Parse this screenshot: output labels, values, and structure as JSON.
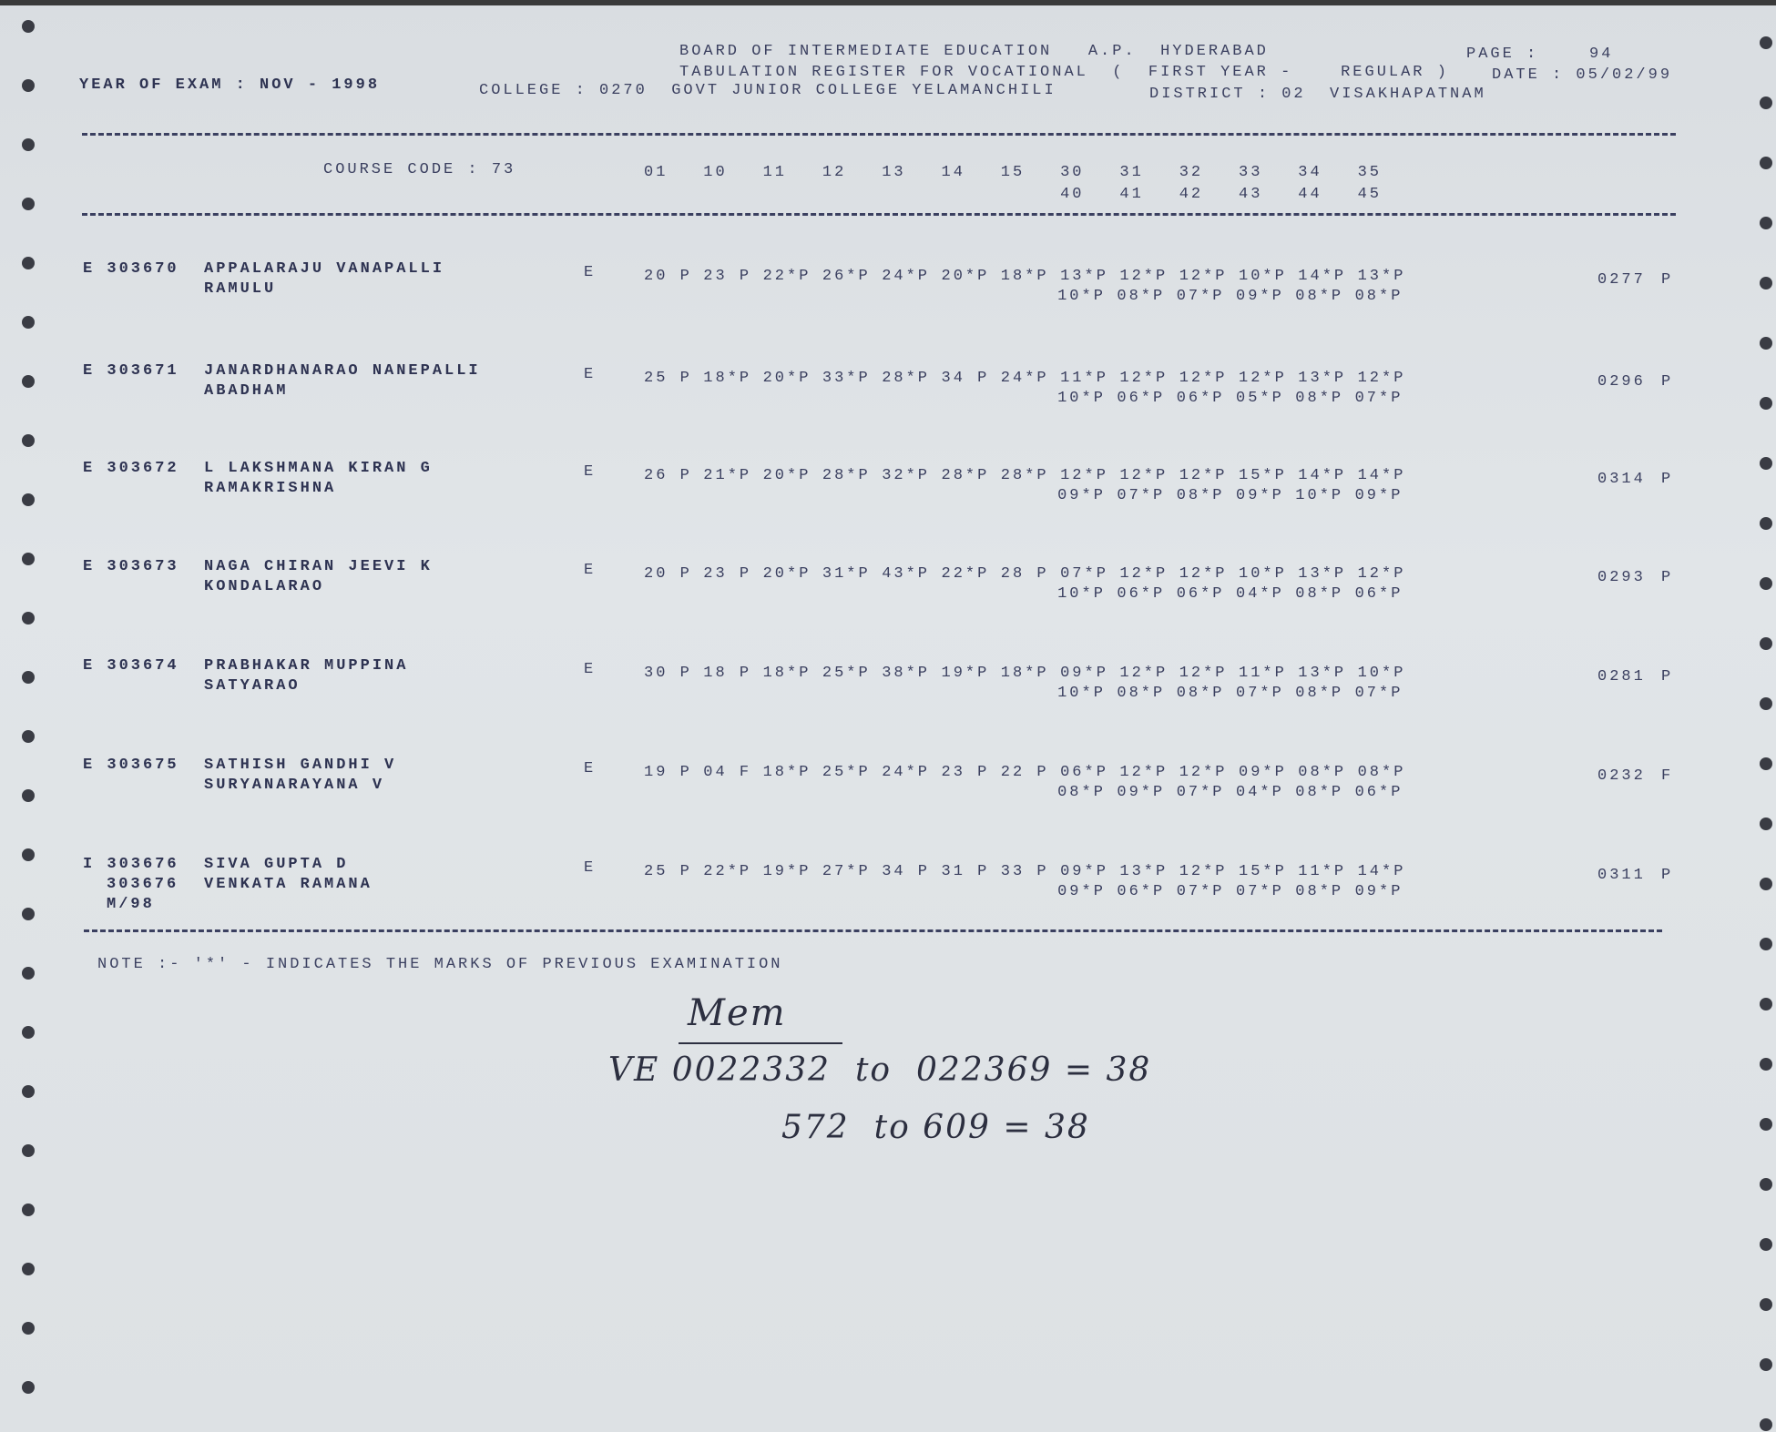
{
  "header": {
    "board": "BOARD OF INTERMEDIATE EDUCATION   A.P.  HYDERABAD",
    "register": "TABULATION REGISTER FOR VOCATIONAL  (  FIRST YEAR -    REGULAR )",
    "page_label": "PAGE :",
    "page_number": "94",
    "date": "DATE : 05/02/99",
    "year_of_exam": "YEAR OF EXAM : NOV - 1998",
    "college": "COLLEGE : 0270  GOVT JUNIOR COLLEGE YELAMANCHILI",
    "district": "DISTRICT : 02  VISAKHAPATNAM"
  },
  "course": {
    "label": "COURSE CODE : 73",
    "codes_row1": [
      "01",
      "10",
      "11",
      "12",
      "13",
      "14",
      "15",
      "30",
      "31",
      "32",
      "33",
      "34",
      "35"
    ],
    "codes_row2": [
      "40",
      "41",
      "42",
      "43",
      "44",
      "45"
    ]
  },
  "students": [
    {
      "reg": "E 303670",
      "name1": "APPALARAJU VANAPALLI",
      "name2": "RAMULU",
      "medium": "E",
      "marks1": [
        "20 P",
        "23 P",
        "22*P",
        "26*P",
        "24*P",
        "20*P",
        "18*P",
        "13*P",
        "12*P",
        "12*P",
        "10*P",
        "14*P",
        "13*P"
      ],
      "marks2": [
        "10*P",
        "08*P",
        "07*P",
        "09*P",
        "08*P",
        "08*P"
      ],
      "total": "0277",
      "result": "P"
    },
    {
      "reg": "E 303671",
      "name1": "JANARDHANARAO NANEPALLI",
      "name2": "ABADHAM",
      "medium": "E",
      "marks1": [
        "25 P",
        "18*P",
        "20*P",
        "33*P",
        "28*P",
        "34 P",
        "24*P",
        "11*P",
        "12*P",
        "12*P",
        "12*P",
        "13*P",
        "12*P"
      ],
      "marks2": [
        "10*P",
        "06*P",
        "06*P",
        "05*P",
        "08*P",
        "07*P"
      ],
      "total": "0296",
      "result": "P"
    },
    {
      "reg": "E 303672",
      "name1": "L LAKSHMANA KIRAN G",
      "name2": "RAMAKRISHNA",
      "medium": "E",
      "marks1": [
        "26 P",
        "21*P",
        "20*P",
        "28*P",
        "32*P",
        "28*P",
        "28*P",
        "12*P",
        "12*P",
        "12*P",
        "15*P",
        "14*P",
        "14*P"
      ],
      "marks2": [
        "09*P",
        "07*P",
        "08*P",
        "09*P",
        "10*P",
        "09*P"
      ],
      "total": "0314",
      "result": "P"
    },
    {
      "reg": "E 303673",
      "name1": "NAGA CHIRAN JEEVI K",
      "name2": "KONDALARAO",
      "medium": "E",
      "marks1": [
        "20 P",
        "23 P",
        "20*P",
        "31*P",
        "43*P",
        "22*P",
        "28 P",
        "07*P",
        "12*P",
        "12*P",
        "10*P",
        "13*P",
        "12*P"
      ],
      "marks2": [
        "10*P",
        "06*P",
        "06*P",
        "04*P",
        "08*P",
        "06*P"
      ],
      "total": "0293",
      "result": "P"
    },
    {
      "reg": "E 303674",
      "name1": "PRABHAKAR MUPPINA",
      "name2": "SATYARAO",
      "medium": "E",
      "marks1": [
        "30 P",
        "18 P",
        "18*P",
        "25*P",
        "38*P",
        "19*P",
        "18*P",
        "09*P",
        "12*P",
        "12*P",
        "11*P",
        "13*P",
        "10*P"
      ],
      "marks2": [
        "10*P",
        "08*P",
        "08*P",
        "07*P",
        "08*P",
        "07*P"
      ],
      "total": "0281",
      "result": "P"
    },
    {
      "reg": "E 303675",
      "name1": "SATHISH GANDHI V",
      "name2": "SURYANARAYANA V",
      "medium": "E",
      "marks1": [
        "19 P",
        "04 F",
        "18*P",
        "25*P",
        "24*P",
        "23 P",
        "22 P",
        "06*P",
        "12*P",
        "12*P",
        "09*P",
        "08*P",
        "08*P"
      ],
      "marks2": [
        "08*P",
        "09*P",
        "07*P",
        "04*P",
        "08*P",
        "06*P"
      ],
      "total": "0232",
      "result": "F"
    },
    {
      "reg": "I 303676",
      "reg2": "303676",
      "reg3": "M/98",
      "name1": "SIVA GUPTA D",
      "name2": "VENKATA RAMANA",
      "medium": "E",
      "marks1": [
        "25 P",
        "22*P",
        "19*P",
        "27*P",
        "34 P",
        "31 P",
        "33 P",
        "09*P",
        "13*P",
        "12*P",
        "15*P",
        "11*P",
        "14*P"
      ],
      "marks2": [
        "09*P",
        "06*P",
        "07*P",
        "07*P",
        "08*P",
        "09*P"
      ],
      "total": "0311",
      "result": "P"
    }
  ],
  "note": "NOTE :- '*' - INDICATES THE MARKS OF PREVIOUS EXAMINATION",
  "handwritten": {
    "signature": "Mem",
    "line1": "VE 0022332  to  022369 = 38",
    "line2": "572  to 609 = 38"
  },
  "colors": {
    "paper": "#dfe3e6",
    "ink": "#3b4060"
  }
}
